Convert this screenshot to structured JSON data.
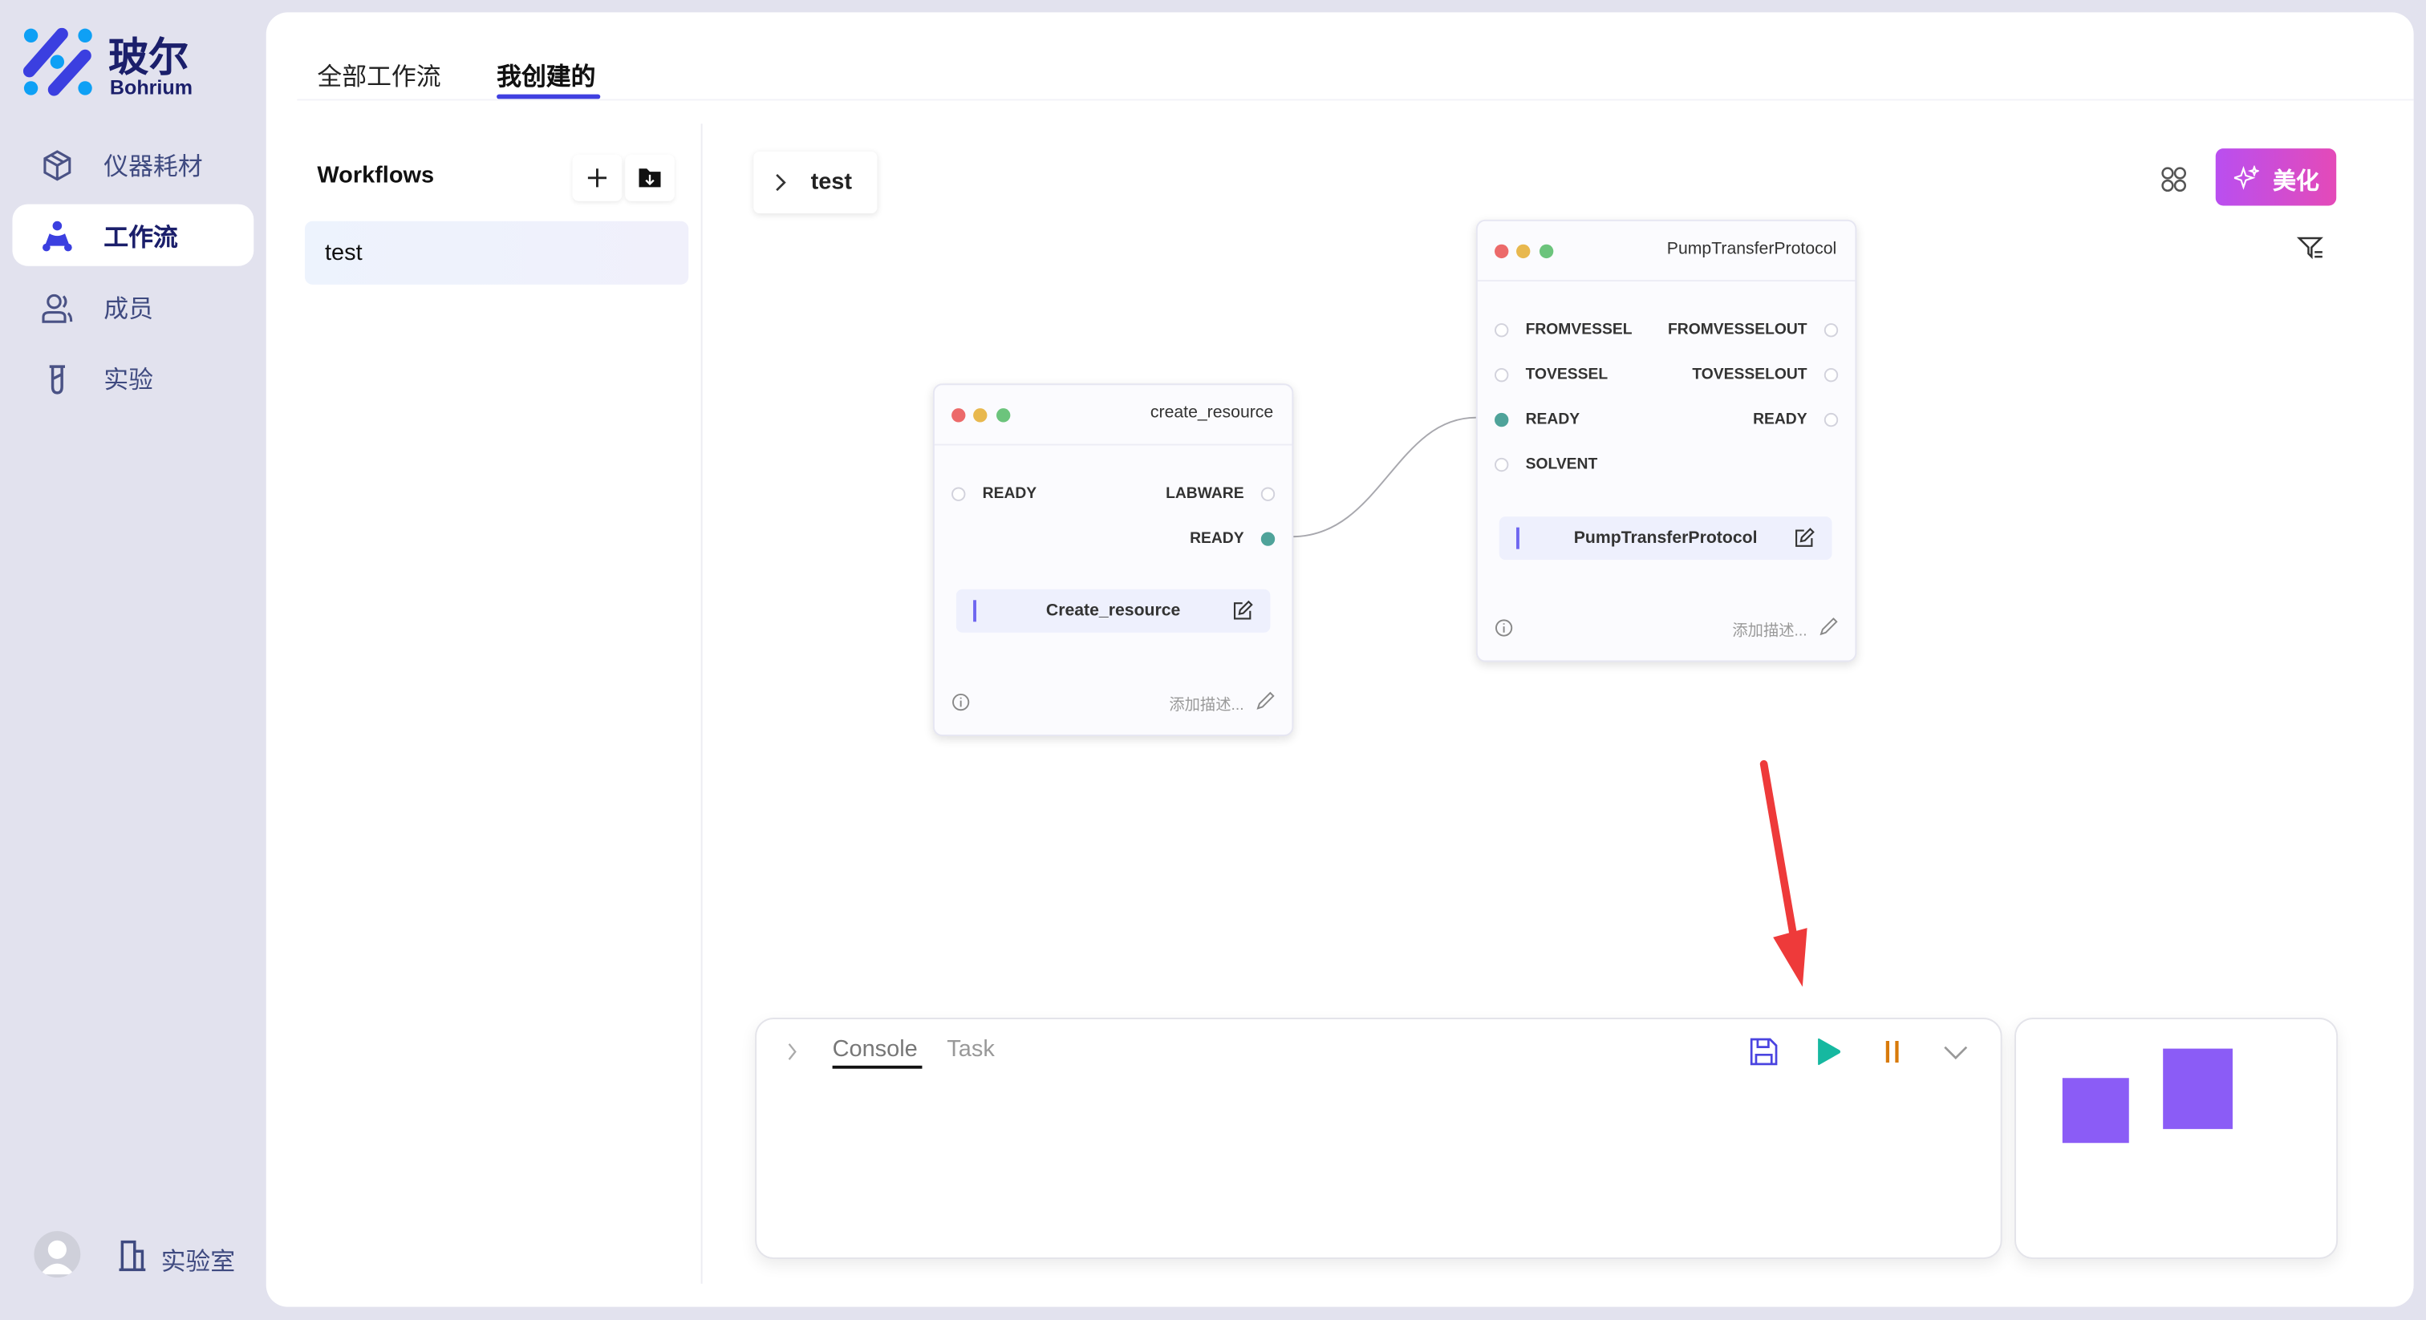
{
  "brand": {
    "name_cn": "玻尔",
    "name_en": "Bohrium"
  },
  "sidebar": {
    "items": [
      {
        "label": "仪器耗材",
        "icon": "cube-icon"
      },
      {
        "label": "工作流",
        "icon": "workflow-icon",
        "active": true
      },
      {
        "label": "成员",
        "icon": "users-icon"
      },
      {
        "label": "实验",
        "icon": "test-tube-icon"
      }
    ],
    "footer": {
      "lab_label": "实验室"
    }
  },
  "tabs": [
    {
      "label": "全部工作流"
    },
    {
      "label": "我创建的",
      "active": true
    }
  ],
  "workflows": {
    "title": "Workflows",
    "items": [
      {
        "label": "test",
        "selected": true
      }
    ]
  },
  "canvas": {
    "breadcrumb": "test",
    "beautify_label": "美化",
    "nodes": [
      {
        "title": "create_resource",
        "inputs": [
          "READY"
        ],
        "outputs": [
          "LABWARE",
          "READY"
        ],
        "name": "Create_resource",
        "desc_placeholder": "添加描述..."
      },
      {
        "title": "PumpTransferProtocol",
        "inputs": [
          "FROMVESSEL",
          "TOVESSEL",
          "READY",
          "SOLVENT"
        ],
        "outputs": [
          "FROMVESSELOUT",
          "TOVESSELOUT",
          "READY"
        ],
        "name": "PumpTransferProtocol",
        "desc_placeholder": "添加描述..."
      }
    ],
    "edge": {
      "from": "create_resource.READY",
      "to": "PumpTransferProtocol.READY"
    }
  },
  "console": {
    "tabs": [
      "Console",
      "Task"
    ],
    "active_tab": "Console"
  },
  "colors": {
    "accent": "#4a44e0",
    "connected_port": "#4fa39a",
    "play": "#16b8a0",
    "pause": "#d87a0a",
    "minimap": "#8b5cf6",
    "arrow": "#ee3a3a"
  }
}
